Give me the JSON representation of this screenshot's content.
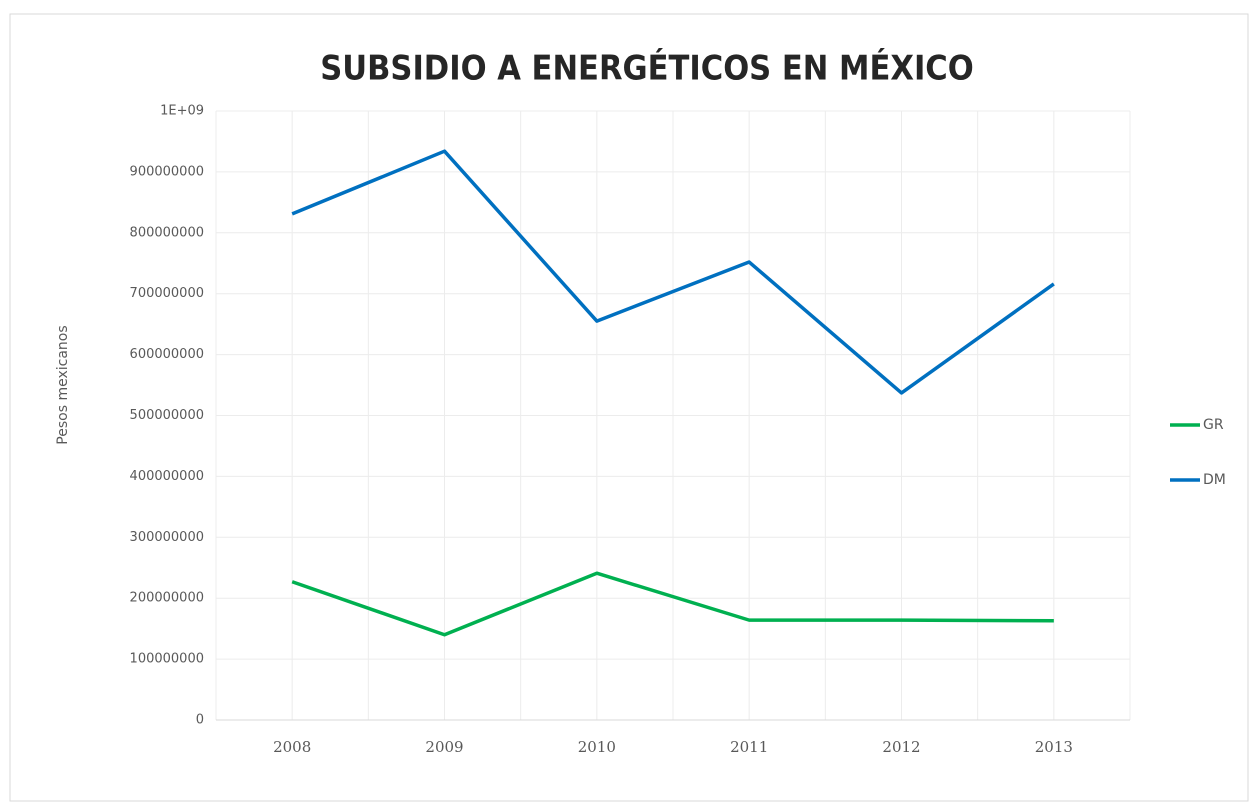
{
  "chart_data": {
    "type": "line",
    "title": "SUBSIDIO A ENERGÉTICOS EN MÉXICO",
    "y_label": "Pesos mexicanos",
    "categories": [
      "2008",
      "2009",
      "2010",
      "2011",
      "2012",
      "2013"
    ],
    "series": [
      {
        "name": "GR",
        "color": "#00b050",
        "values": [
          227000000,
          140000000,
          241000000,
          164000000,
          164000000,
          163000000
        ]
      },
      {
        "name": "DM",
        "color": "#0070c0",
        "values": [
          831000000,
          934000000,
          655000000,
          752000000,
          537000000,
          716000000
        ]
      }
    ],
    "ylim": [
      0,
      1000000000
    ],
    "yticks": [
      0,
      100000000,
      200000000,
      300000000,
      400000000,
      500000000,
      600000000,
      700000000,
      800000000,
      900000000,
      {
        "value": 1000000000,
        "label": "1E+09"
      }
    ],
    "grid": true,
    "legend": "right"
  }
}
